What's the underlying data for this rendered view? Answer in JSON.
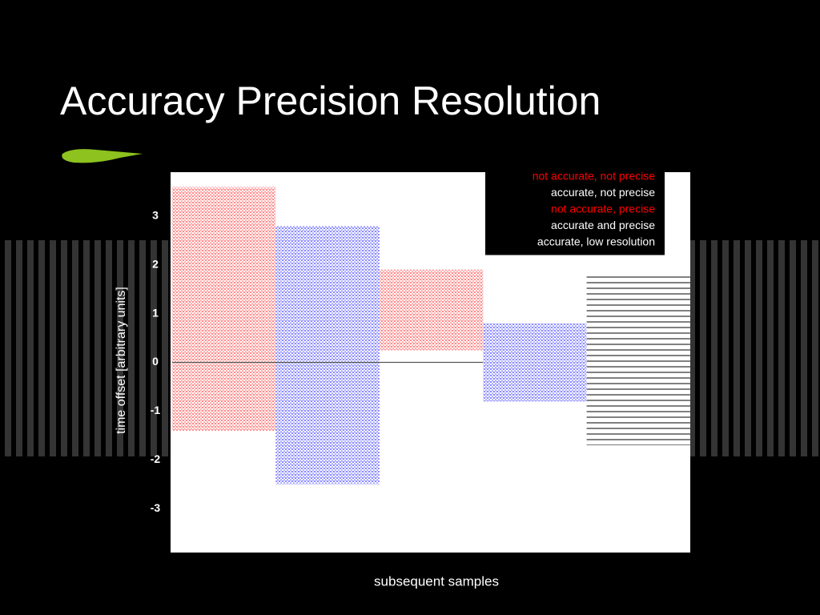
{
  "chart_data": {
    "type": "range-cloud",
    "title": "Accuracy Precision Resolution",
    "x_label": "subsequent samples",
    "y_label": "time offset [arbitrary units]",
    "ylim": [
      -3.9,
      3.9
    ],
    "yticks": [
      3,
      2,
      1,
      0,
      -1,
      -2,
      -3
    ],
    "true_value": 0,
    "legend": "upper right",
    "series": [
      {
        "name": "not accurate, not precise",
        "color": "#ff0000",
        "legend_color": "#ff0000",
        "marker": "dots",
        "low": -1.4,
        "high": 3.6
      },
      {
        "name": "accurate, not precise",
        "color": "#0000ff",
        "legend_color": "#ffffff",
        "marker": "dots",
        "low": -2.5,
        "high": 2.8
      },
      {
        "name": "not accurate, precise",
        "color": "#ff0000",
        "legend_color": "#ff0000",
        "marker": "dots",
        "low": 0.25,
        "high": 1.9
      },
      {
        "name": "accurate and precise",
        "color": "#0000ff",
        "legend_color": "#ffffff",
        "marker": "dots",
        "low": -0.8,
        "high": 0.8
      },
      {
        "name": "accurate, low resolution",
        "color": "#000000",
        "legend_color": "#ffffff",
        "marker": "lines",
        "low": -1.7,
        "high": 1.8
      }
    ]
  }
}
